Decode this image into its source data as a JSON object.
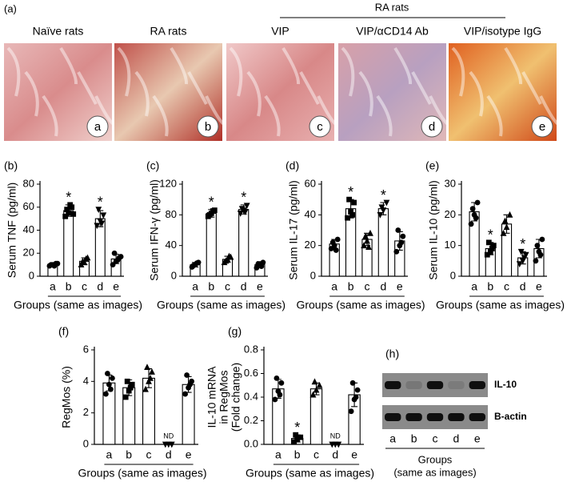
{
  "panel_a": {
    "label": "(a)",
    "group_label": "RA rats",
    "images": [
      {
        "title": "Naïve rats",
        "letter": "a"
      },
      {
        "title": "RA rats",
        "letter": "b"
      },
      {
        "title": "VIP",
        "letter": "c"
      },
      {
        "title": "VIP/αCD14 Ab",
        "letter": "d"
      },
      {
        "title": "VIP/isotype IgG",
        "letter": "e"
      }
    ]
  },
  "chart_data": [
    {
      "type": "bar",
      "label": "(b)",
      "ylabel": [
        "Serum TNF (pg/ml)"
      ],
      "xlabel": "Groups (same as images)",
      "categories": [
        "a",
        "b",
        "c",
        "d",
        "e"
      ],
      "values": [
        10,
        57,
        13,
        50,
        15
      ],
      "errors": [
        1,
        5,
        3,
        7,
        4
      ],
      "points": [
        [
          9,
          10,
          11,
          10,
          9,
          11
        ],
        [
          52,
          55,
          60,
          58,
          62,
          54
        ],
        [
          10,
          12,
          16,
          13,
          15
        ],
        [
          44,
          48,
          53,
          58,
          46
        ],
        [
          10,
          13,
          16,
          20,
          14,
          17
        ]
      ],
      "markers": [
        "circle",
        "square",
        "triangle",
        "triangle-down",
        "circle"
      ],
      "ylim": [
        0,
        80
      ],
      "yticks": [
        0,
        20,
        40,
        60,
        80
      ],
      "annotations": [
        {
          "text": "*",
          "category": "b"
        },
        {
          "text": "*",
          "category": "d"
        }
      ]
    },
    {
      "type": "bar",
      "label": "(c)",
      "ylabel": [
        "Serum IFN-γ (pg/ml)"
      ],
      "xlabel": "Groups (same as images)",
      "categories": [
        "a",
        "b",
        "c",
        "d",
        "e"
      ],
      "values": [
        15,
        82,
        22,
        87,
        15
      ],
      "errors": [
        3,
        5,
        4,
        6,
        4
      ],
      "points": [
        [
          12,
          15,
          18,
          14,
          17
        ],
        [
          78,
          82,
          86,
          80,
          85
        ],
        [
          18,
          22,
          25,
          20,
          26
        ],
        [
          82,
          86,
          92,
          88,
          84
        ],
        [
          11,
          14,
          18,
          16,
          13
        ]
      ],
      "markers": [
        "circle",
        "square",
        "triangle",
        "triangle-down",
        "circle"
      ],
      "ylim": [
        0,
        120
      ],
      "yticks": [
        0,
        40,
        80,
        120
      ],
      "annotations": [
        {
          "text": "*",
          "category": "b"
        },
        {
          "text": "*",
          "category": "d"
        }
      ]
    },
    {
      "type": "bar",
      "label": "(d)",
      "ylabel": [
        "Serum IL-17 (pg/ml)"
      ],
      "xlabel": "Groups (same as images)",
      "categories": [
        "a",
        "b",
        "c",
        "d",
        "e"
      ],
      "values": [
        21,
        44,
        24,
        44,
        23
      ],
      "errors": [
        3,
        6,
        4,
        4,
        6
      ],
      "points": [
        [
          18,
          20,
          24,
          22,
          17
        ],
        [
          38,
          42,
          48,
          50,
          40
        ],
        [
          20,
          23,
          28,
          26,
          19
        ],
        [
          40,
          43,
          48,
          45
        ],
        [
          16,
          20,
          26,
          30,
          22
        ]
      ],
      "markers": [
        "circle",
        "square",
        "triangle",
        "triangle-down",
        "circle"
      ],
      "ylim": [
        0,
        60
      ],
      "yticks": [
        0,
        20,
        40,
        60
      ],
      "annotations": [
        {
          "text": "*",
          "category": "b"
        },
        {
          "text": "*",
          "category": "d"
        }
      ]
    },
    {
      "type": "bar",
      "label": "(e)",
      "ylabel": [
        "Serum IL-10 (pg/ml)"
      ],
      "xlabel": "Groups (same as images)",
      "categories": [
        "a",
        "b",
        "c",
        "d",
        "e"
      ],
      "values": [
        21,
        9,
        17,
        6,
        9
      ],
      "errors": [
        3,
        2,
        3,
        2,
        3
      ],
      "points": [
        [
          17,
          20,
          24,
          22,
          19
        ],
        [
          7,
          8,
          10,
          11,
          9
        ],
        [
          14,
          16,
          20,
          18
        ],
        [
          4,
          5,
          7,
          8,
          6
        ],
        [
          5,
          8,
          12,
          10,
          7
        ]
      ],
      "markers": [
        "circle",
        "square",
        "triangle",
        "triangle-down",
        "circle"
      ],
      "ylim": [
        0,
        30
      ],
      "yticks": [
        0,
        10,
        20,
        30
      ],
      "annotations": [
        {
          "text": "*",
          "category": "b"
        },
        {
          "text": "*",
          "category": "d"
        }
      ]
    },
    {
      "type": "bar",
      "label": "(f)",
      "ylabel": [
        "RegMos (%)"
      ],
      "xlabel": "Groups (same as images)",
      "categories": [
        "a",
        "b",
        "c",
        "d",
        "e"
      ],
      "values": [
        3.9,
        3.6,
        4.2,
        0,
        3.8
      ],
      "errors": [
        0.5,
        0.5,
        0.6,
        0,
        0.5
      ],
      "points": [
        [
          3.2,
          3.8,
          4.2,
          4.5,
          3.5
        ],
        [
          3.0,
          3.4,
          3.8,
          4.0,
          3.6
        ],
        [
          3.5,
          4.0,
          4.6,
          4.9,
          4.2
        ],
        [
          0,
          0,
          0
        ],
        [
          3.2,
          3.6,
          4.0,
          4.4,
          3.8
        ]
      ],
      "markers": [
        "circle",
        "square",
        "triangle",
        "triangle-down",
        "circle"
      ],
      "ylim": [
        0,
        6
      ],
      "yticks": [
        0,
        2,
        4,
        6
      ],
      "annotations": [
        {
          "text": "ND",
          "category": "d"
        }
      ]
    },
    {
      "type": "bar",
      "label": "(g)",
      "ylabel": [
        "IL-10 mRNA",
        "in RegMos",
        "(Fold change)"
      ],
      "xlabel": "Groups (same as images)",
      "categories": [
        "a",
        "b",
        "c",
        "d",
        "e"
      ],
      "values": [
        0.47,
        0.05,
        0.47,
        0,
        0.42
      ],
      "errors": [
        0.08,
        0.03,
        0.05,
        0,
        0.1
      ],
      "points": [
        [
          0.38,
          0.45,
          0.52,
          0.56,
          0.42
        ],
        [
          0.02,
          0.04,
          0.06,
          0.08
        ],
        [
          0.42,
          0.46,
          0.5,
          0.53
        ],
        [
          0,
          0,
          0
        ],
        [
          0.28,
          0.38,
          0.46,
          0.52,
          0.4
        ]
      ],
      "markers": [
        "circle",
        "square",
        "triangle",
        "triangle-down",
        "circle"
      ],
      "ylim": [
        0,
        0.8
      ],
      "yticks": [
        {
          "value": 0,
          "label": "0.0"
        },
        0.2,
        0.4,
        0.6,
        0.8
      ],
      "annotations": [
        {
          "text": "*",
          "category": "b"
        },
        {
          "text": "ND",
          "category": "d"
        }
      ]
    }
  ],
  "panel_h": {
    "label": "(h)",
    "rows": [
      "IL-10",
      "B-actin"
    ],
    "lanes": [
      "a",
      "b",
      "c",
      "d",
      "e"
    ],
    "xlabel": [
      "Groups",
      "(same as images)"
    ]
  }
}
